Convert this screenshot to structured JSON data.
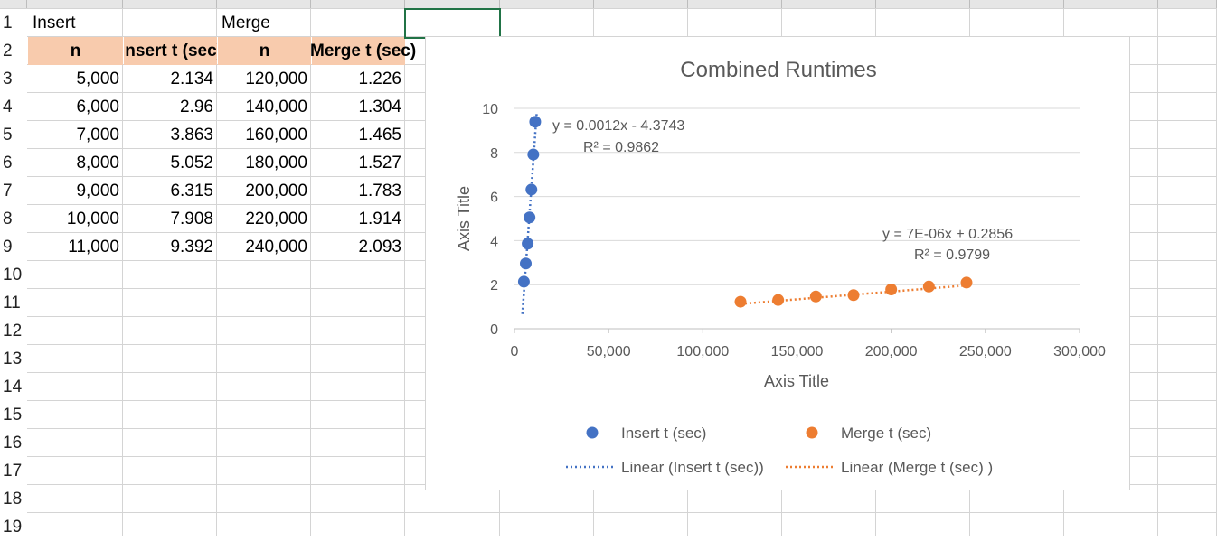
{
  "sheet": {
    "row_numbers": [
      "1",
      "2",
      "3",
      "4",
      "5",
      "6",
      "7",
      "8",
      "9",
      "10",
      "11",
      "12",
      "13",
      "14",
      "15",
      "16",
      "17",
      "18",
      "19"
    ],
    "row1": {
      "a": "Insert",
      "c": "Merge"
    },
    "headers": {
      "a": "n",
      "b": "Insert t (sec)",
      "c": "n",
      "d": "Merge t (sec)"
    },
    "rows": [
      {
        "a": "5,000",
        "b": "2.134",
        "c": "120,000",
        "d": "1.226"
      },
      {
        "a": "6,000",
        "b": "2.96",
        "c": "140,000",
        "d": "1.304"
      },
      {
        "a": "7,000",
        "b": "3.863",
        "c": "160,000",
        "d": "1.465"
      },
      {
        "a": "8,000",
        "b": "5.052",
        "c": "180,000",
        "d": "1.527"
      },
      {
        "a": "9,000",
        "b": "6.315",
        "c": "200,000",
        "d": "1.783"
      },
      {
        "a": "10,000",
        "b": "7.908",
        "c": "220,000",
        "d": "1.914"
      },
      {
        "a": "11,000",
        "b": "9.392",
        "c": "240,000",
        "d": "2.093"
      }
    ]
  },
  "chart_data": {
    "type": "scatter",
    "title": "Combined Runtimes",
    "xlabel": "Axis Title",
    "ylabel": "Axis Title",
    "xlim": [
      0,
      300000
    ],
    "ylim": [
      0,
      10
    ],
    "x_ticks": [
      "0",
      "50,000",
      "100,000",
      "150,000",
      "200,000",
      "250,000",
      "300,000"
    ],
    "y_ticks": [
      "0",
      "2",
      "4",
      "6",
      "8",
      "10"
    ],
    "grid": true,
    "legend_position": "bottom",
    "series": [
      {
        "name": "Insert t (sec)",
        "color": "#4472c4",
        "x": [
          5000,
          6000,
          7000,
          8000,
          9000,
          10000,
          11000
        ],
        "y": [
          2.134,
          2.96,
          3.863,
          5.052,
          6.315,
          7.908,
          9.392
        ],
        "trendline_name": "Linear (Insert t (sec))",
        "trendline": {
          "slope": 0.0012,
          "intercept": -4.3743
        },
        "equation": "y = 0.0012x - 4.3743",
        "r2": "R² = 0.9862"
      },
      {
        "name": "Merge t (sec)",
        "color": "#ed7d31",
        "x": [
          120000,
          140000,
          160000,
          180000,
          200000,
          220000,
          240000
        ],
        "y": [
          1.226,
          1.304,
          1.465,
          1.527,
          1.783,
          1.914,
          2.093
        ],
        "trendline_name": "Linear (Merge t (sec) )",
        "trendline": {
          "slope": 7e-06,
          "intercept": 0.2856
        },
        "equation": "y = 7E-06x + 0.2856",
        "r2": "R² = 0.9799"
      }
    ]
  }
}
